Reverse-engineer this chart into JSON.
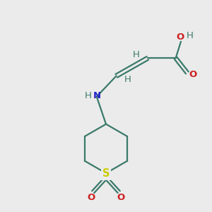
{
  "background_color": "#ebebeb",
  "bond_color": "#3a7a6a",
  "N_color": "#2222cc",
  "O_color": "#cc2222",
  "S_color": "#cccc00",
  "H_color": "#3a7a6a",
  "figsize": [
    3.0,
    3.0
  ],
  "dpi": 100,
  "xlim": [
    0,
    10
  ],
  "ylim": [
    0,
    10
  ]
}
